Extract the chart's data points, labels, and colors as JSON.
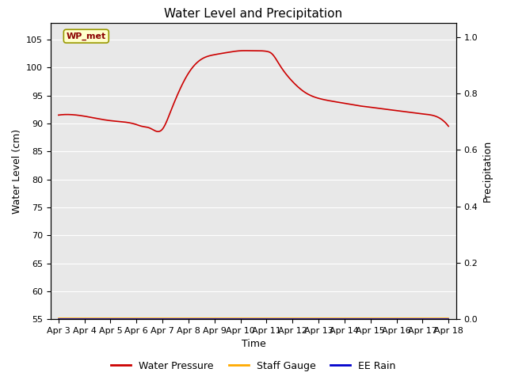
{
  "title": "Water Level and Precipitation",
  "xlabel": "Time",
  "ylabel_left": "Water Level (cm)",
  "ylabel_right": "Precipitation",
  "annotation_text": "WP_met",
  "ylim_left": [
    55,
    108
  ],
  "ylim_right": [
    0.0,
    1.05
  ],
  "yticks_left": [
    55,
    60,
    65,
    70,
    75,
    80,
    85,
    90,
    95,
    100,
    105
  ],
  "yticks_right": [
    0.0,
    0.2,
    0.4,
    0.6,
    0.8,
    1.0
  ],
  "background_color": "#e8e8e8",
  "figure_bg": "#ffffff",
  "line_color_wp": "#cc0000",
  "line_color_staff": "#ffaa00",
  "line_color_rain": "#0000cc",
  "legend_labels": [
    "Water Pressure",
    "Staff Gauge",
    "EE Rain"
  ],
  "title_fontsize": 11,
  "axis_label_fontsize": 9,
  "tick_fontsize": 8,
  "annotation_fontsize": 8,
  "legend_fontsize": 9,
  "x_dates": [
    "Apr 3",
    "Apr 4",
    "Apr 5",
    "Apr 6",
    "Apr 7",
    "Apr 8",
    "Apr 9",
    "Apr 10",
    "Apr 11",
    "Apr 12",
    "Apr 13",
    "Apr 14",
    "Apr 15",
    "Apr 16",
    "Apr 17",
    "Apr 18"
  ],
  "key_x": [
    0,
    1,
    2,
    3,
    3.2,
    3.5,
    4.0,
    4.3,
    5.0,
    5.5,
    6.0,
    6.5,
    7.0,
    7.5,
    8.0,
    8.2,
    8.5,
    9.0,
    9.5,
    10.0,
    10.5,
    11.0,
    11.5,
    12.0,
    12.5,
    13.0,
    13.5,
    14.0,
    14.5,
    15.0
  ],
  "key_y": [
    91.5,
    91.3,
    90.5,
    89.8,
    89.5,
    89.2,
    89.0,
    92.0,
    99.0,
    101.5,
    102.3,
    102.7,
    103.0,
    103.0,
    102.9,
    102.5,
    100.5,
    97.5,
    95.5,
    94.5,
    94.0,
    93.6,
    93.2,
    92.9,
    92.6,
    92.3,
    92.0,
    91.7,
    91.3,
    89.5
  ],
  "grid_color": "#ffffff",
  "grid_linewidth": 0.8,
  "line_linewidth": 1.2
}
